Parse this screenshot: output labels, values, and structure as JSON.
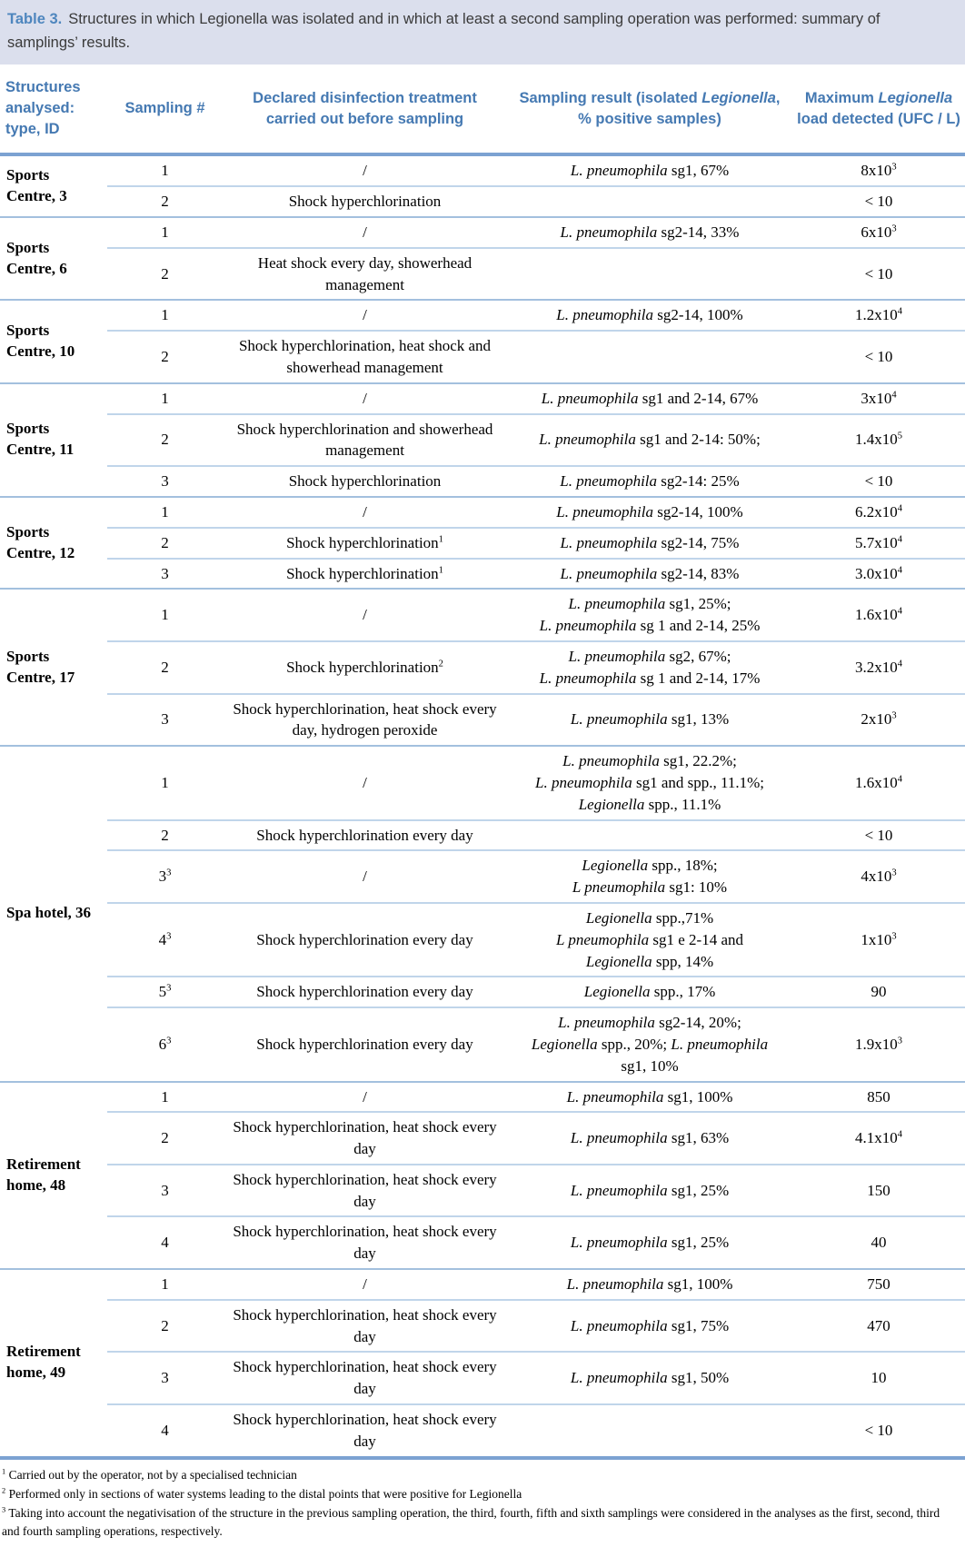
{
  "caption": {
    "label": "Table 3.",
    "text": "Structures in which Legionella was isolated and in which at least a second sampling operation was performed: summary of samplings’ results."
  },
  "columns": [
    {
      "key": "structure",
      "label": "Structures analysed: type, ID"
    },
    {
      "key": "sampling",
      "label": "Sampling #"
    },
    {
      "key": "treatment",
      "label": "Declared disinfection treatment carried out before sampling"
    },
    {
      "key": "result",
      "label": "Sampling result (isolated *Legionella*, % positive samples)"
    },
    {
      "key": "load",
      "label": "Maximum *Legionella* load detected (UFC / L)"
    }
  ],
  "groups": [
    {
      "label": "Sports Centre, 3",
      "rows": [
        {
          "sampling": "1",
          "treatment": "/",
          "result": [
            "*L. pneumophila* sg1, 67%"
          ],
          "load": "8x10^3"
        },
        {
          "sampling": "2",
          "treatment": "Shock hyperchlorination",
          "result": [],
          "load": "< 10"
        }
      ]
    },
    {
      "label": "Sports Centre, 6",
      "rows": [
        {
          "sampling": "1",
          "treatment": "/",
          "result": [
            "*L. pneumophila* sg2-14, 33%"
          ],
          "load": "6x10^3"
        },
        {
          "sampling": "2",
          "treatment": "Heat shock every day, showerhead management",
          "result": [],
          "load": "< 10"
        }
      ]
    },
    {
      "label": "Sports Centre, 10",
      "rows": [
        {
          "sampling": "1",
          "treatment": "/",
          "result": [
            "*L. pneumophila* sg2-14, 100%"
          ],
          "load": "1.2x10^4"
        },
        {
          "sampling": "2",
          "treatment": "Shock hyperchlorination, heat shock and showerhead management",
          "result": [],
          "load": "< 10"
        }
      ]
    },
    {
      "label": "Sports Centre, 11",
      "rows": [
        {
          "sampling": "1",
          "treatment": "/",
          "result": [
            "*L. pneumophila* sg1 and 2-14, 67%"
          ],
          "load": "3x10^4"
        },
        {
          "sampling": "2",
          "treatment": "Shock hyperchlorination and showerhead management",
          "result": [
            "*L. pneumophila* sg1 and 2-14: 50%;"
          ],
          "load": "1.4x10^5"
        },
        {
          "sampling": "3",
          "treatment": "Shock hyperchlorination",
          "result": [
            "*L. pneumophila* sg2-14: 25%"
          ],
          "load": "< 10"
        }
      ]
    },
    {
      "label": "Sports Centre, 12",
      "rows": [
        {
          "sampling": "1",
          "treatment": "/",
          "result": [
            "*L. pneumophila* sg2-14, 100%"
          ],
          "load": "6.2x10^4"
        },
        {
          "sampling": "2",
          "treatment": "Shock hyperchlorination^1",
          "result": [
            "*L. pneumophila* sg2-14, 75%"
          ],
          "load": "5.7x10^4"
        },
        {
          "sampling": "3",
          "treatment": "Shock hyperchlorination^1",
          "result": [
            "*L. pneumophila* sg2-14, 83%"
          ],
          "load": "3.0x10^4"
        }
      ]
    },
    {
      "label": "Sports Centre, 17",
      "rows": [
        {
          "sampling": "1",
          "treatment": "/",
          "result": [
            "*L. pneumophila* sg1, 25%;",
            "*L. pneumophila* sg 1 and 2-14, 25%"
          ],
          "load": "1.6x10^4"
        },
        {
          "sampling": "2",
          "treatment": "Shock hyperchlorination^2",
          "result": [
            "*L. pneumophila* sg2, 67%;",
            "*L. pneumophila* sg 1 and 2-14, 17%"
          ],
          "load": "3.2x10^4"
        },
        {
          "sampling": "3",
          "treatment": "Shock hyperchlorination, heat shock every day, hydrogen peroxide",
          "result": [
            "*L. pneumophila* sg1, 13%"
          ],
          "load": "2x10^3"
        }
      ]
    },
    {
      "label": "Spa hotel, 36",
      "rows": [
        {
          "sampling": "1",
          "treatment": "/",
          "result": [
            "*L. pneumophila* sg1, 22.2%;",
            "*L. pneumophila* sg1 and spp., 11.1%;",
            "*Legionella* spp., 11.1%"
          ],
          "load": "1.6x10^4"
        },
        {
          "sampling": "2",
          "treatment": "Shock hyperchlorination every day",
          "result": [],
          "load": "< 10"
        },
        {
          "sampling": "3^3",
          "treatment": "/",
          "result": [
            "*Legionella* spp., 18%;",
            "*L pneumophila* sg1: 10%"
          ],
          "load": "4x10^3"
        },
        {
          "sampling": "4^3",
          "treatment": "Shock hyperchlorination every day",
          "result": [
            "*Legionella* spp.,71%",
            "*L pneumophila* sg1 e 2-14 and",
            "*Legionella* spp, 14%"
          ],
          "load": "1x10^3"
        },
        {
          "sampling": "5^3",
          "treatment": "Shock hyperchlorination every day",
          "result": [
            "*Legionella* spp., 17%"
          ],
          "load": "90"
        },
        {
          "sampling": "6^3",
          "treatment": "Shock hyperchlorination every day",
          "result": [
            "*L. pneumophila* sg2-14, 20%;",
            "*Legionella* spp., 20%; *L. pneumophila*",
            "sg1, 10%"
          ],
          "load": "1.9x10^3"
        }
      ]
    },
    {
      "label": "Retirement home, 48",
      "rows": [
        {
          "sampling": "1",
          "treatment": "/",
          "result": [
            "*L. pneumophila* sg1, 100%"
          ],
          "load": "850"
        },
        {
          "sampling": "2",
          "treatment": "Shock hyperchlorination, heat shock every day",
          "result": [
            "*L. pneumophila* sg1, 63%"
          ],
          "load": "4.1x10^4"
        },
        {
          "sampling": "3",
          "treatment": "Shock hyperchlorination, heat shock every day",
          "result": [
            "*L. pneumophila* sg1, 25%"
          ],
          "load": "150"
        },
        {
          "sampling": "4",
          "treatment": "Shock hyperchlorination, heat shock every day",
          "result": [
            "*L. pneumophila* sg1, 25%"
          ],
          "load": "40"
        }
      ]
    },
    {
      "label": "Retirement home, 49",
      "rows": [
        {
          "sampling": "1",
          "treatment": "/",
          "result": [
            "*L. pneumophila* sg1, 100%"
          ],
          "load": "750"
        },
        {
          "sampling": "2",
          "treatment": "Shock hyperchlorination, heat shock every day",
          "result": [
            "*L. pneumophila* sg1, 75%"
          ],
          "load": "470"
        },
        {
          "sampling": "3",
          "treatment": "Shock hyperchlorination, heat shock every day",
          "result": [
            "*L. pneumophila* sg1, 50%"
          ],
          "load": "10"
        },
        {
          "sampling": "4",
          "treatment": "Shock hyperchlorination, heat shock every day",
          "result": [],
          "load": "< 10"
        }
      ]
    }
  ],
  "footnotes": [
    {
      "marker": "1",
      "text": "Carried out by the operator, not by a specialised technician"
    },
    {
      "marker": "2",
      "text": "Performed only in sections of water systems leading to the distal points that were positive for Legionella"
    },
    {
      "marker": "3",
      "text": "Taking into account the negativisation of the structure in the previous sampling operation, the third, fourth, fifth and sixth samplings were considered in the analyses as the first, second, third and fourth sampling operations, respectively."
    }
  ],
  "colors": {
    "caption_bg": "#dbdfed",
    "caption_label_blue": "#4e86be",
    "header_blue": "#4579b2",
    "rule_heavy": "#7ca2d2",
    "rule_group": "#a3c0de",
    "rule_light": "#c0d5ea"
  }
}
